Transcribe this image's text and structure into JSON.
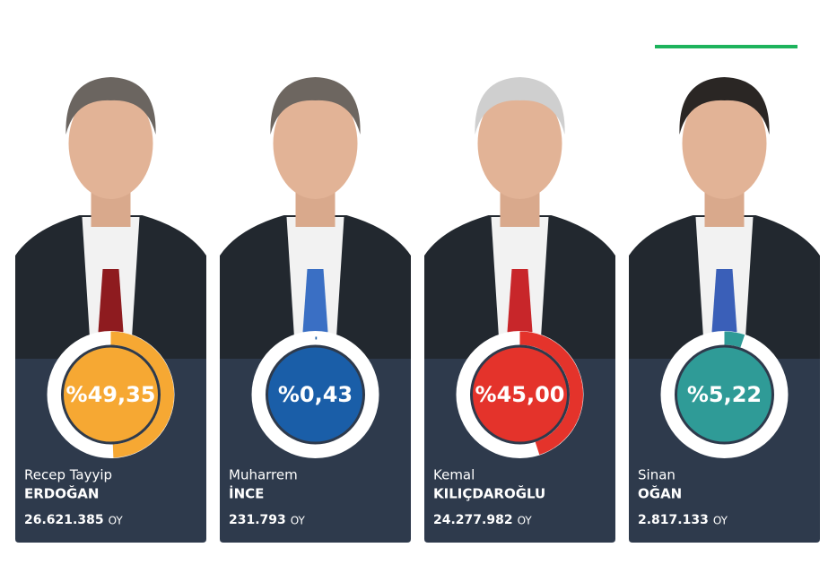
{
  "candidates": [
    {
      "first_name": "Recep Tayyip",
      "last_name": "ERDOĞAN",
      "percent": 49.35,
      "percent_label": "%49,35",
      "votes": 26621385,
      "votes_label": "26.621.385",
      "color": "#f6a833"
    },
    {
      "first_name": "Muharrem",
      "last_name": "İNCE",
      "percent": 0.43,
      "percent_label": "%0,43",
      "votes": 231793,
      "votes_label": "231.793",
      "color": "#1a5ea8"
    },
    {
      "first_name": "Kemal",
      "last_name": "KILIÇDAROĞLU",
      "percent": 45.0,
      "percent_label": "%45,00",
      "votes": 24277982,
      "votes_label": "24.277.982",
      "color": "#e4332b"
    },
    {
      "first_name": "Sinan",
      "last_name": "OĞAN",
      "percent": 5.22,
      "percent_label": "%5,22",
      "votes": 2817133,
      "votes_label": "2.817.133",
      "color": "#2f9b97"
    }
  ],
  "vote_unit": "OY"
}
